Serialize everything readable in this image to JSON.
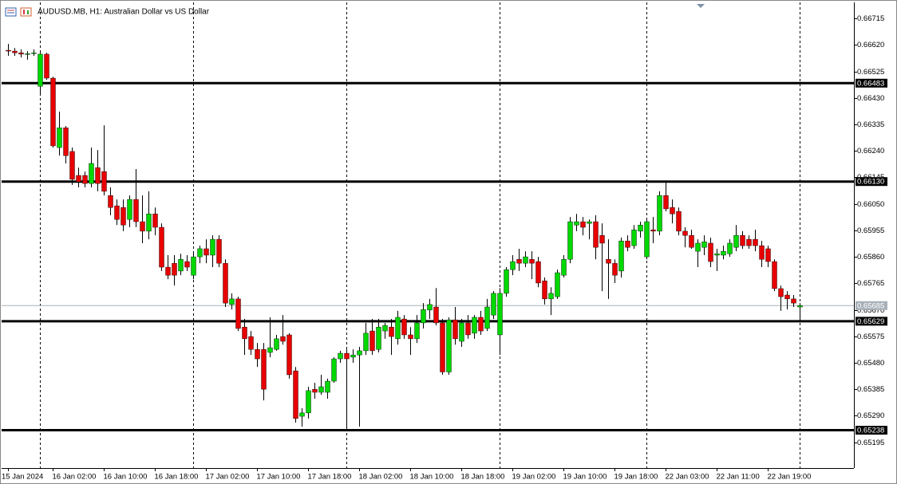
{
  "chart_data": {
    "type": "candlestick",
    "title": "AUDUSD.MB, H1:  Australian Dollar vs US Dollar",
    "up_color": "#00d800",
    "down_color": "#e80000",
    "wick_color": "#000000",
    "open": [
      0.66601,
      0.66598,
      0.66592,
      0.66587,
      0.66589,
      0.66472,
      0.66587,
      0.66501,
      0.66252,
      0.66323,
      0.66238,
      0.66152,
      0.66152,
      0.66123,
      0.6618,
      0.66166,
      0.6608,
      0.66043,
      0.66037,
      0.65994,
      0.66066,
      0.65986,
      0.65952,
      0.66014,
      0.65966,
      0.65823,
      0.65837,
      0.65809,
      0.65843,
      0.65794,
      0.6586,
      0.65889,
      0.65866,
      0.65923,
      0.65837,
      0.65689,
      0.65709,
      0.65608,
      0.65574,
      0.65528,
      0.65528,
      0.65517,
      0.65528,
      0.65574,
      0.6558,
      0.65451,
      0.65288,
      0.653,
      0.65385,
      0.65374,
      0.65374,
      0.65414,
      0.65494,
      0.65514,
      0.655,
      0.65508,
      0.65523,
      0.65594,
      0.65528,
      0.65594,
      0.65608,
      0.65566,
      0.65637,
      0.6558,
      0.65566,
      0.65623,
      0.65669,
      0.6568,
      0.65623,
      0.65447,
      0.65634,
      0.65557,
      0.65623,
      0.65586,
      0.65643,
      0.65603,
      0.65651,
      0.6558,
      0.65729,
      0.65814,
      0.65851,
      0.65837,
      0.65851,
      0.65843,
      0.65774,
      0.65709,
      0.65717,
      0.65794,
      0.65851,
      0.65974,
      0.65986,
      0.6598,
      0.65986,
      0.65937,
      0.65851,
      0.65837,
      0.65809,
      0.65917,
      0.659,
      0.65952,
      0.6586,
      0.65957,
      0.65952,
      0.6608,
      0.66037,
      0.66023,
      0.65952,
      0.65937,
      0.6588,
      0.65894,
      0.65909,
      0.65866,
      0.65866,
      0.65871,
      0.65894,
      0.65937,
      0.65923,
      0.65923,
      0.659,
      0.65889,
      0.65843,
      0.65746,
      0.65723,
      0.65709,
      0.6568
    ],
    "high": [
      0.66624,
      0.66609,
      0.66604,
      0.66598,
      0.66604,
      0.66592,
      0.66592,
      0.66506,
      0.66381,
      0.66329,
      0.66252,
      0.6618,
      0.66166,
      0.66252,
      0.66243,
      0.66332,
      0.66109,
      0.66066,
      0.66066,
      0.6608,
      0.66175,
      0.6608,
      0.66095,
      0.66037,
      0.6598,
      0.65866,
      0.65866,
      0.65871,
      0.65866,
      0.6588,
      0.659,
      0.65923,
      0.65937,
      0.65937,
      0.65851,
      0.65729,
      0.65717,
      0.65637,
      0.65594,
      0.65551,
      0.65551,
      0.65643,
      0.6558,
      0.65651,
      0.65586,
      0.65465,
      0.65317,
      0.65394,
      0.65408,
      0.65437,
      0.65423,
      0.655,
      0.65523,
      0.65528,
      0.65528,
      0.65537,
      0.65623,
      0.65637,
      0.65637,
      0.65623,
      0.65637,
      0.65666,
      0.65651,
      0.65608,
      0.65651,
      0.65694,
      0.65709,
      0.65748,
      0.65637,
      0.65643,
      0.6568,
      0.65637,
      0.65651,
      0.65651,
      0.65666,
      0.65709,
      0.65737,
      0.65748,
      0.65823,
      0.65866,
      0.65889,
      0.6588,
      0.6588,
      0.6586,
      0.65786,
      0.65751,
      0.65814,
      0.65866,
      0.66003,
      0.66014,
      0.66003,
      0.65994,
      0.66009,
      0.6598,
      0.65923,
      0.65851,
      0.65929,
      0.65937,
      0.65974,
      0.65986,
      0.65994,
      0.66003,
      0.66095,
      0.66129,
      0.66066,
      0.66037,
      0.65966,
      0.65957,
      0.65923,
      0.65937,
      0.65929,
      0.65889,
      0.659,
      0.65923,
      0.65974,
      0.65952,
      0.65937,
      0.65957,
      0.65917,
      0.659,
      0.65851,
      0.65757,
      0.65737,
      0.65723,
      0.65694
    ],
    "low": [
      0.66581,
      0.66581,
      0.66575,
      0.66567,
      0.66581,
      0.66443,
      0.66495,
      0.66252,
      0.66223,
      0.66195,
      0.66118,
      0.66109,
      0.66109,
      0.66109,
      0.66095,
      0.6608,
      0.66009,
      0.65974,
      0.65952,
      0.65966,
      0.65966,
      0.65909,
      0.65923,
      0.65937,
      0.65809,
      0.6578,
      0.65757,
      0.65794,
      0.65809,
      0.6578,
      0.65837,
      0.65837,
      0.65823,
      0.65823,
      0.6568,
      0.65671,
      0.65594,
      0.65508,
      0.65508,
      0.65465,
      0.65345,
      0.655,
      0.65523,
      0.65545,
      0.65423,
      0.65265,
      0.65251,
      0.6528,
      0.65351,
      0.65365,
      0.65351,
      0.65408,
      0.6548,
      0.65237,
      0.6548,
      0.65251,
      0.65508,
      0.65508,
      0.65517,
      0.65566,
      0.65508,
      0.65545,
      0.65566,
      0.65508,
      0.65551,
      0.65603,
      0.65637,
      0.65614,
      0.65437,
      0.65437,
      0.65545,
      0.65537,
      0.65566,
      0.65566,
      0.6558,
      0.65594,
      0.65637,
      0.65508,
      0.65717,
      0.65794,
      0.65809,
      0.65823,
      0.6578,
      0.65751,
      0.65689,
      0.65651,
      0.65709,
      0.65786,
      0.65837,
      0.65952,
      0.65937,
      0.65923,
      0.65851,
      0.65737,
      0.65709,
      0.65766,
      0.65786,
      0.6588,
      0.65889,
      0.65929,
      0.65851,
      0.65909,
      0.65937,
      0.66023,
      0.6598,
      0.65937,
      0.65894,
      0.65889,
      0.65823,
      0.65866,
      0.65823,
      0.65809,
      0.65851,
      0.6586,
      0.6588,
      0.65889,
      0.65889,
      0.6588,
      0.65823,
      0.65823,
      0.65737,
      0.65666,
      0.65671,
      0.6568,
      0.65637
    ],
    "close": [
      0.66598,
      0.66592,
      0.66587,
      0.66589,
      0.66592,
      0.66587,
      0.66501,
      0.66258,
      0.66323,
      0.66223,
      0.66138,
      0.66129,
      0.66123,
      0.66195,
      0.66123,
      0.66095,
      0.66037,
      0.65994,
      0.65974,
      0.66066,
      0.65986,
      0.65952,
      0.66014,
      0.65966,
      0.65823,
      0.65794,
      0.65794,
      0.65851,
      0.65823,
      0.6586,
      0.65889,
      0.65866,
      0.65923,
      0.65837,
      0.65694,
      0.65709,
      0.65603,
      0.65566,
      0.65528,
      0.65494,
      0.65385,
      0.65534,
      0.65566,
      0.65557,
      0.65437,
      0.6528,
      0.653,
      0.6538,
      0.65374,
      0.65394,
      0.65414,
      0.65494,
      0.65514,
      0.65494,
      0.65508,
      0.65523,
      0.65586,
      0.65523,
      0.65608,
      0.65614,
      0.65574,
      0.65643,
      0.6558,
      0.65566,
      0.65623,
      0.65671,
      0.65689,
      0.65623,
      0.65447,
      0.65634,
      0.65566,
      0.65623,
      0.6558,
      0.65643,
      0.65594,
      0.6568,
      0.65729,
      0.65729,
      0.65814,
      0.65843,
      0.65837,
      0.6586,
      0.65837,
      0.65766,
      0.65709,
      0.65729,
      0.65803,
      0.65851,
      0.65986,
      0.65986,
      0.65966,
      0.65986,
      0.65894,
      0.65909,
      0.65837,
      0.65794,
      0.65917,
      0.65894,
      0.65957,
      0.65974,
      0.65986,
      0.65952,
      0.6608,
      0.66032,
      0.66014,
      0.65952,
      0.65937,
      0.65894,
      0.65909,
      0.65914,
      0.65843,
      0.65871,
      0.6588,
      0.65909,
      0.65937,
      0.659,
      0.659,
      0.659,
      0.65851,
      0.65843,
      0.65746,
      0.65717,
      0.65709,
      0.65694,
      0.65685
    ],
    "ylim": [
      0.65108,
      0.66767
    ],
    "yticks": [
      0.66715,
      {
        "value": 0.6662,
        "label": "0.66620"
      },
      0.66525,
      {
        "value": 0.6643,
        "label": "0.66430"
      },
      0.66335,
      {
        "value": 0.6624,
        "label": "0.66240"
      },
      0.66145,
      {
        "value": 0.6605,
        "label": "0.66050"
      },
      0.65955,
      {
        "value": 0.6586,
        "label": "0.65860"
      },
      0.65765,
      {
        "value": 0.6567,
        "label": "0.65670"
      },
      0.65575,
      {
        "value": 0.6548,
        "label": "0.65480"
      },
      0.65385,
      {
        "value": 0.6529,
        "label": "0.65290"
      },
      0.65195
    ],
    "xticks": [
      {
        "value": 0,
        "label": "15 Jan 2024"
      },
      {
        "value": 7,
        "label": "16 Jan 02:00"
      },
      {
        "value": 15,
        "label": "16 Jan 10:00"
      },
      {
        "value": 23,
        "label": "16 Jan 18:00"
      },
      {
        "value": 31,
        "label": "17 Jan 02:00"
      },
      {
        "value": 39,
        "label": "17 Jan 10:00"
      },
      {
        "value": 47,
        "label": "17 Jan 18:00"
      },
      {
        "value": 55,
        "label": "18 Jan 02:00"
      },
      {
        "value": 63,
        "label": "18 Jan 10:00"
      },
      {
        "value": 71,
        "label": "18 Jan 18:00"
      },
      {
        "value": 79,
        "label": "19 Jan 02:00"
      },
      {
        "value": 87,
        "label": "19 Jan 10:00"
      },
      {
        "value": 95,
        "label": "19 Jan 18:00"
      },
      {
        "value": 103,
        "label": "22 Jan 03:00"
      },
      {
        "value": 111,
        "label": "22 Jan 11:00"
      },
      {
        "value": 119,
        "label": "22 Jan 19:00"
      }
    ],
    "period_separators": [
      5,
      29,
      53,
      77,
      100,
      124
    ],
    "hlines": [
      0.66483,
      {
        "value": 0.6613,
        "label": "0.66130"
      },
      0.65629,
      0.65238
    ],
    "current_price": 0.65685
  }
}
